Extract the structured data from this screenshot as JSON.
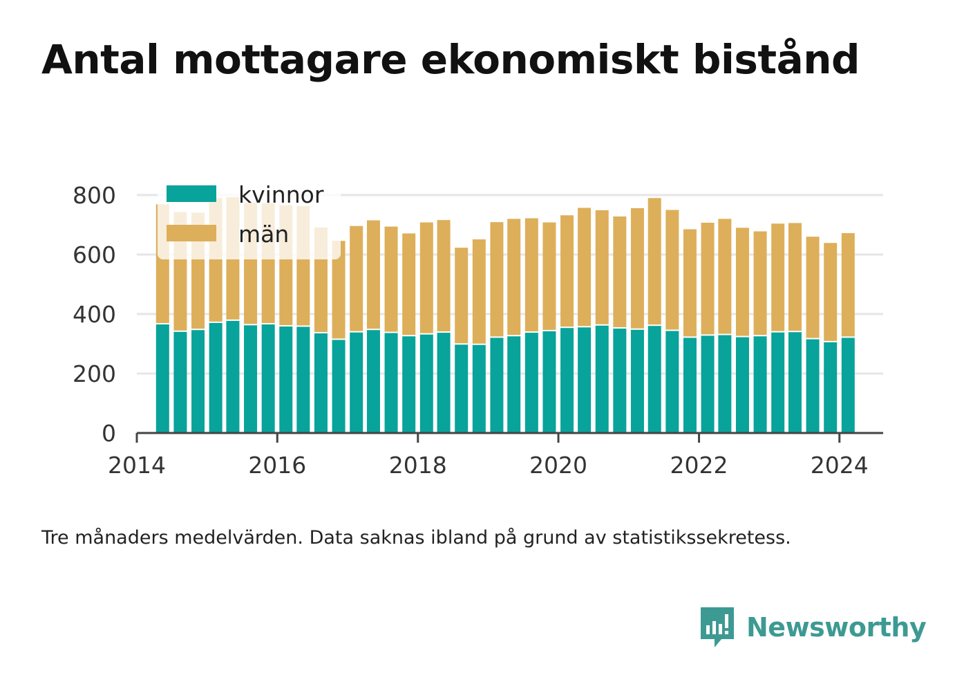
{
  "title": "Antal mottagare ekonomiskt bistånd",
  "note": "Tre månaders medelvärden. Data saknas ibland på grund av statistikssekretess.",
  "brand": {
    "name": "Newsworthy"
  },
  "colors": {
    "kvinnor": "#08a39a",
    "man": "#ddaf5a",
    "grid": "#e6e6e6",
    "axis": "#444444",
    "brand": "#3d9a93"
  },
  "chart_data": {
    "type": "bar",
    "stacked": true,
    "title": "Antal mottagare ekonomiskt bistånd",
    "xlabel": "",
    "ylabel": "",
    "ylim": [
      0,
      800
    ],
    "yticks": [
      0,
      200,
      400,
      600,
      800
    ],
    "xlim": [
      "2014-01-01",
      "2024-08-15"
    ],
    "xticks": [
      {
        "date": "2014-01-01",
        "label": "2014"
      },
      {
        "date": "2016-01-01",
        "label": "2016"
      },
      {
        "date": "2018-01-01",
        "label": "2018"
      },
      {
        "date": "2020-01-01",
        "label": "2020"
      },
      {
        "date": "2022-01-01",
        "label": "2022"
      },
      {
        "date": "2024-01-01",
        "label": "2024"
      }
    ],
    "grid": true,
    "legend": "top-left",
    "x": [
      "2014-05",
      "2014-08",
      "2014-11",
      "2015-02",
      "2015-05",
      "2015-08",
      "2015-11",
      "2016-02",
      "2016-05",
      "2016-08",
      "2016-11",
      "2017-02",
      "2017-05",
      "2017-08",
      "2017-11",
      "2018-02",
      "2018-05",
      "2018-08",
      "2018-11",
      "2019-02",
      "2019-05",
      "2019-08",
      "2019-11",
      "2020-02",
      "2020-05",
      "2020-08",
      "2020-11",
      "2021-02",
      "2021-05",
      "2021-08",
      "2021-11",
      "2022-02",
      "2022-05",
      "2022-08",
      "2022-11",
      "2023-02",
      "2023-05",
      "2023-08",
      "2023-11",
      "2024-02"
    ],
    "series": [
      {
        "name": "kvinnor",
        "values": [
          365,
          340,
          346,
          370,
          377,
          362,
          365,
          358,
          357,
          335,
          313,
          338,
          346,
          336,
          325,
          331,
          337,
          297,
          296,
          320,
          325,
          337,
          342,
          353,
          355,
          361,
          351,
          347,
          360,
          343,
          320,
          327,
          329,
          322,
          325,
          338,
          339,
          315,
          305,
          320
        ]
      },
      {
        "name": "män",
        "values": [
          404,
          403,
          395,
          420,
          416,
          412,
          408,
          408,
          406,
          356,
          333,
          358,
          369,
          358,
          346,
          377,
          379,
          326,
          355,
          389,
          395,
          385,
          366,
          379,
          402,
          388,
          377,
          409,
          430,
          407,
          365,
          380,
          391,
          368,
          353,
          366,
          367,
          345,
          334,
          352
        ]
      }
    ]
  }
}
